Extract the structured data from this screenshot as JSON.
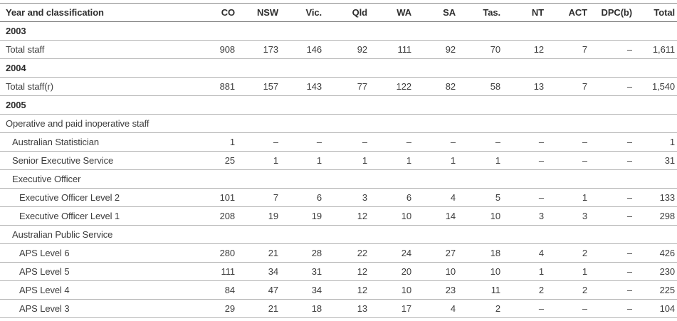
{
  "table": {
    "header": {
      "label_column": "Year and classification",
      "value_columns": [
        "CO",
        "NSW",
        "Vic.",
        "Qld",
        "WA",
        "SA",
        "Tas.",
        "NT",
        "ACT",
        "DPC(b)",
        "Total"
      ]
    },
    "rows": [
      {
        "label": "2003",
        "style": "year",
        "indent": 0,
        "values": []
      },
      {
        "label": "Total staff",
        "style": "data",
        "indent": 0,
        "values": [
          "908",
          "173",
          "146",
          "92",
          "111",
          "92",
          "70",
          "12",
          "7",
          "–",
          "1,611"
        ]
      },
      {
        "label": "2004",
        "style": "year",
        "indent": 0,
        "values": []
      },
      {
        "label": "Total staff(r)",
        "style": "data",
        "indent": 0,
        "values": [
          "881",
          "157",
          "143",
          "77",
          "122",
          "82",
          "58",
          "13",
          "7",
          "–",
          "1,540"
        ]
      },
      {
        "label": "2005",
        "style": "year",
        "indent": 0,
        "values": []
      },
      {
        "label": "Operative and paid inoperative staff",
        "style": "group",
        "indent": 0,
        "values": []
      },
      {
        "label": "Australian Statistician",
        "style": "data",
        "indent": 1,
        "values": [
          "1",
          "–",
          "–",
          "–",
          "–",
          "–",
          "–",
          "–",
          "–",
          "–",
          "1"
        ]
      },
      {
        "label": "Senior Executive Service",
        "style": "data",
        "indent": 1,
        "values": [
          "25",
          "1",
          "1",
          "1",
          "1",
          "1",
          "1",
          "–",
          "–",
          "–",
          "31"
        ]
      },
      {
        "label": "Executive Officer",
        "style": "group",
        "indent": 1,
        "values": []
      },
      {
        "label": "Executive Officer Level 2",
        "style": "data",
        "indent": 2,
        "values": [
          "101",
          "7",
          "6",
          "3",
          "6",
          "4",
          "5",
          "–",
          "1",
          "–",
          "133"
        ]
      },
      {
        "label": "Executive Officer Level 1",
        "style": "data",
        "indent": 2,
        "values": [
          "208",
          "19",
          "19",
          "12",
          "10",
          "14",
          "10",
          "3",
          "3",
          "–",
          "298"
        ]
      },
      {
        "label": "Australian Public Service",
        "style": "group",
        "indent": 1,
        "values": []
      },
      {
        "label": "APS Level 6",
        "style": "data",
        "indent": 2,
        "values": [
          "280",
          "21",
          "28",
          "22",
          "24",
          "27",
          "18",
          "4",
          "2",
          "–",
          "426"
        ]
      },
      {
        "label": "APS Level 5",
        "style": "data",
        "indent": 2,
        "values": [
          "111",
          "34",
          "31",
          "12",
          "20",
          "10",
          "10",
          "1",
          "1",
          "–",
          "230"
        ]
      },
      {
        "label": "APS Level 4",
        "style": "data",
        "indent": 2,
        "values": [
          "84",
          "47",
          "34",
          "12",
          "10",
          "23",
          "11",
          "2",
          "2",
          "–",
          "225"
        ]
      },
      {
        "label": "APS Level 3",
        "style": "data",
        "indent": 2,
        "values": [
          "29",
          "21",
          "18",
          "13",
          "17",
          "4",
          "2",
          "–",
          "–",
          "–",
          "104"
        ]
      }
    ]
  },
  "colors": {
    "background": "#ffffff",
    "text": "#3d3d3d",
    "heading_text": "#2e2e2e",
    "border_top": "#8a8a8a",
    "border_header": "#757575",
    "border_row": "#b3b3b3"
  }
}
